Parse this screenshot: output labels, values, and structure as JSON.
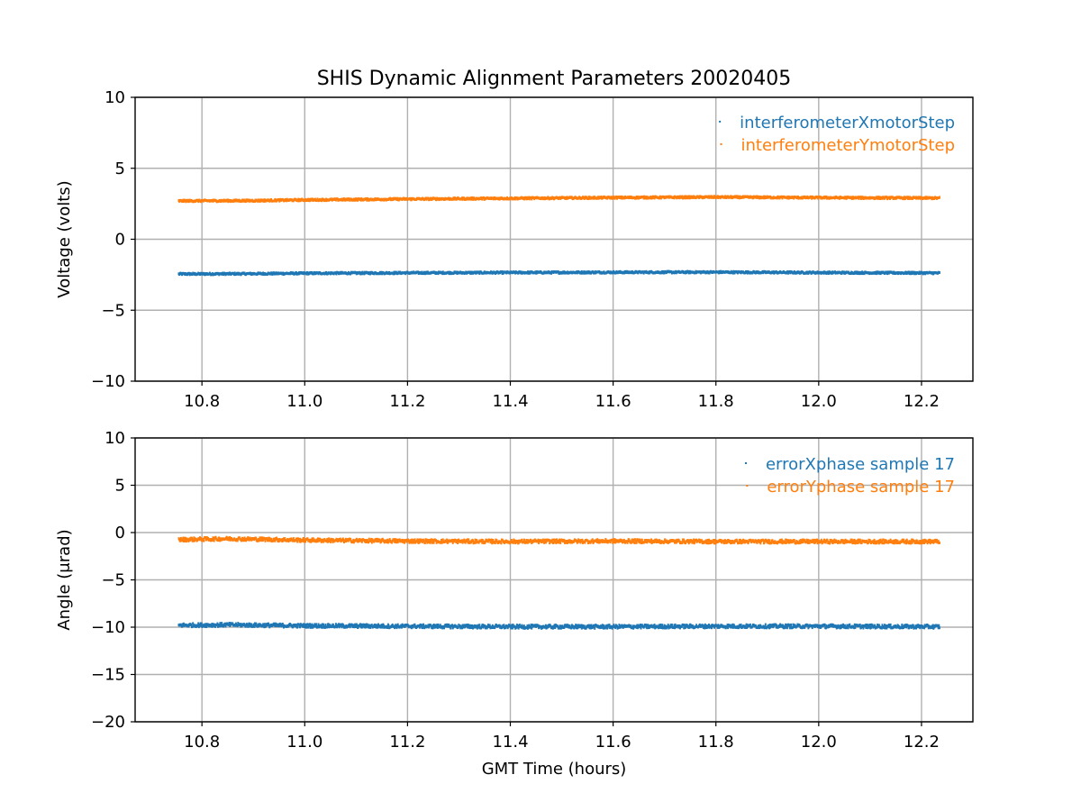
{
  "title": "SHIS Dynamic Alignment Parameters 20020405",
  "colors": {
    "series1": "#1f77b4",
    "series2": "#ff7f0e",
    "grid": "#b0b0b0",
    "axes": "#000000"
  },
  "chart_data": [
    {
      "type": "scatter",
      "title": "SHIS Dynamic Alignment Parameters 20020405",
      "xlabel": "",
      "ylabel": "Voltage (volts)",
      "xlim": [
        10.67,
        12.3
      ],
      "ylim": [
        -10,
        10
      ],
      "xticks": [
        10.8,
        11.0,
        11.2,
        11.4,
        11.6,
        11.8,
        12.0,
        12.2
      ],
      "xtick_labels": [
        "10.8",
        "11.0",
        "11.2",
        "11.4",
        "11.6",
        "11.8",
        "12.0",
        "12.2"
      ],
      "yticks": [
        -10,
        -5,
        0,
        5,
        10
      ],
      "ytick_labels": [
        "−10",
        "−5",
        "0",
        "5",
        "10"
      ],
      "grid": true,
      "legend_position": "top-right",
      "series": [
        {
          "name": "interferometerXmotorStep",
          "x": [
            10.755,
            10.9,
            11.0,
            11.2,
            11.4,
            11.6,
            11.8,
            12.0,
            12.235
          ],
          "y": [
            -2.45,
            -2.43,
            -2.4,
            -2.37,
            -2.35,
            -2.33,
            -2.32,
            -2.35,
            -2.38
          ]
        },
        {
          "name": "interferometerYmotorStep",
          "x": [
            10.755,
            10.9,
            11.0,
            11.2,
            11.4,
            11.6,
            11.8,
            12.0,
            12.235
          ],
          "y": [
            2.7,
            2.72,
            2.77,
            2.83,
            2.88,
            2.93,
            2.97,
            2.93,
            2.9
          ]
        }
      ]
    },
    {
      "type": "scatter",
      "title": "",
      "xlabel": "GMT Time (hours)",
      "ylabel": "Angle (μrad)",
      "xlim": [
        10.67,
        12.3
      ],
      "ylim": [
        -20,
        10
      ],
      "xticks": [
        10.8,
        11.0,
        11.2,
        11.4,
        11.6,
        11.8,
        12.0,
        12.2
      ],
      "xtick_labels": [
        "10.8",
        "11.0",
        "11.2",
        "11.4",
        "11.6",
        "11.8",
        "12.0",
        "12.2"
      ],
      "yticks": [
        -20,
        -15,
        -10,
        -5,
        0,
        5,
        10
      ],
      "ytick_labels": [
        "−20",
        "−15",
        "−10",
        "−5",
        "0",
        "5",
        "10"
      ],
      "grid": true,
      "legend_position": "top-right",
      "series": [
        {
          "name": "errorXphase sample 17",
          "x": [
            10.755,
            10.85,
            11.0,
            11.2,
            11.4,
            11.6,
            11.8,
            12.0,
            12.235
          ],
          "y": [
            -9.8,
            -9.75,
            -9.85,
            -9.9,
            -9.95,
            -9.95,
            -9.9,
            -9.9,
            -9.95
          ]
        },
        {
          "name": "errorYphase sample 17",
          "x": [
            10.755,
            10.85,
            11.0,
            11.2,
            11.4,
            11.6,
            11.8,
            12.0,
            12.235
          ],
          "y": [
            -0.75,
            -0.65,
            -0.8,
            -0.9,
            -0.95,
            -0.9,
            -0.95,
            -0.95,
            -0.95
          ]
        }
      ]
    }
  ]
}
